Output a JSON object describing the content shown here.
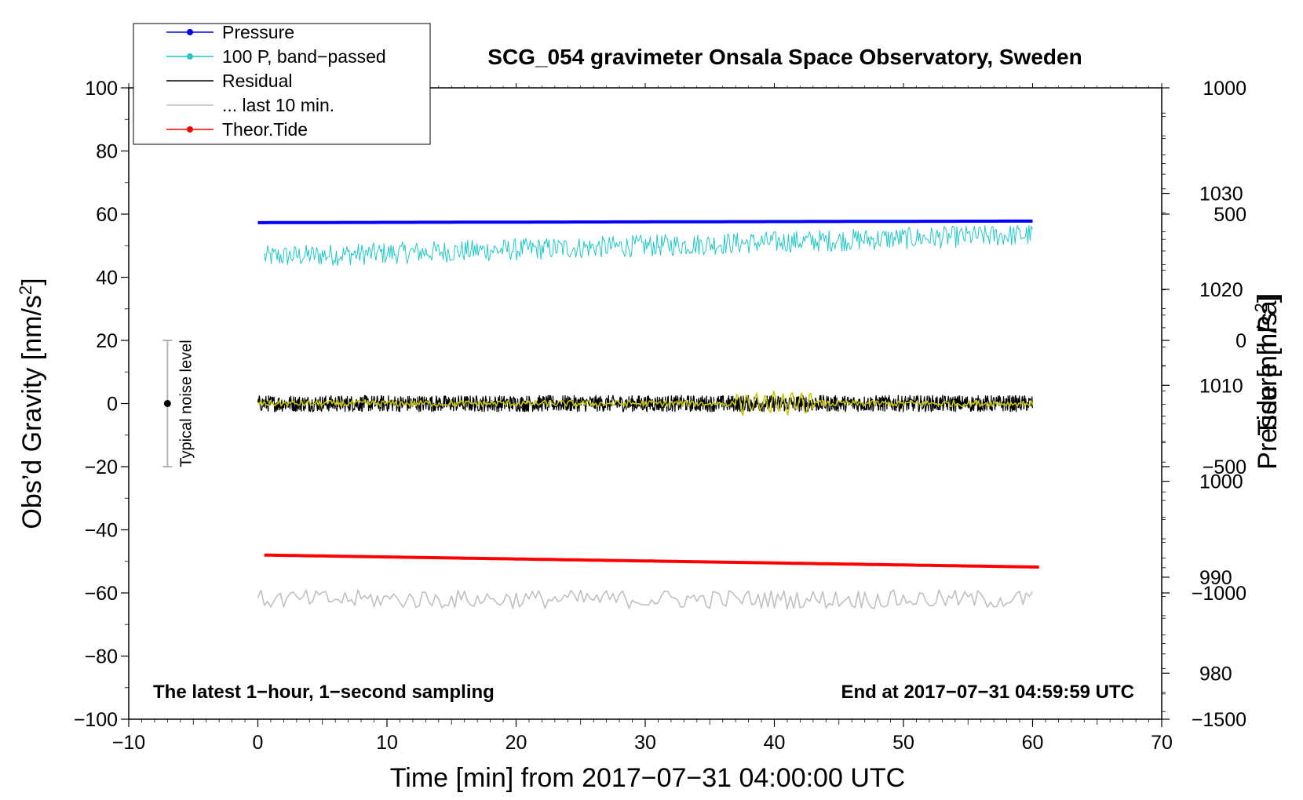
{
  "chart_data": {
    "type": "line",
    "title": "SCG_054 gravimeter Onsala Space Observatory, Sweden",
    "xlabel": "Time [min] from 2017−07−31 04:00:00 UTC",
    "ylabel_left": "Obs’d Gravity [nm/s",
    "ylabel_left_sup": "2",
    "ylabel_left_end": "]",
    "ylabel_pressure": "Pressure [hPa]",
    "ylabel_tide": "Tide [nm/s",
    "ylabel_tide_sup": "2",
    "ylabel_tide_end": "]",
    "xlim": [
      -10,
      70
    ],
    "ylim": [
      -100,
      100
    ],
    "pressure_lim": [
      975.2,
      1041
    ],
    "tide_lim": [
      -1500,
      1000
    ],
    "x_ticks": [
      -10,
      0,
      10,
      20,
      30,
      40,
      50,
      60,
      70
    ],
    "x_tick_labels": [
      "−10",
      "0",
      "10",
      "20",
      "30",
      "40",
      "50",
      "60",
      "70"
    ],
    "y_ticks": [
      -100,
      -80,
      -60,
      -40,
      -20,
      0,
      20,
      40,
      60,
      80,
      100
    ],
    "y_tick_labels": [
      "−100",
      "−80",
      "−60",
      "−40",
      "−20",
      "0",
      "20",
      "40",
      "60",
      "80",
      "100"
    ],
    "pressure_ticks": [
      980,
      990,
      1000,
      1010,
      1020,
      1030
    ],
    "pressure_tick_labels": [
      "980",
      "990",
      "1000",
      "1010",
      "1020",
      "1030"
    ],
    "tide_ticks": [
      -1500,
      -1000,
      -500,
      0,
      500,
      1000
    ],
    "tide_tick_labels": [
      "−1500",
      "−1000",
      "−500",
      "0",
      "500",
      "1000"
    ],
    "legend_position": "top-left",
    "legend": [
      {
        "label": "Pressure",
        "color": "#0000ff",
        "marker": true
      },
      {
        "label": "100 P, band−passed",
        "color": "#20c8c8",
        "marker": true
      },
      {
        "label": "Residual",
        "color": "#000000",
        "marker": false
      },
      {
        "label": "... last 10 min.",
        "color": "#c0c0c0",
        "marker": false
      },
      {
        "label": "Theor.Tide",
        "color": "#ff0000",
        "marker": true
      }
    ],
    "series": [
      {
        "name": "Pressure",
        "color": "#0000ff",
        "axis": "left",
        "x_range": [
          0,
          60
        ],
        "start": 57.3,
        "end": 57.8,
        "noise": 0
      },
      {
        "name": "100 P, band-passed",
        "color": "#20c8c8",
        "axis": "left",
        "x_range": [
          0.5,
          60
        ],
        "start": 46.5,
        "end": 53.5,
        "noise": 3.5
      },
      {
        "name": "Residual",
        "color": "#000000",
        "axis": "left",
        "x_range": [
          0,
          60
        ],
        "start": 0,
        "end": 0,
        "noise": 2.6
      },
      {
        "name": "Residual smoothed",
        "color": "#c8c800",
        "axis": "left",
        "x_range": [
          0,
          60
        ],
        "start": 0,
        "end": 0,
        "noise": 1.0
      },
      {
        "name": "... last 10 min.",
        "color": "#c0c0c0",
        "axis": "left",
        "x_range": [
          0,
          60
        ],
        "start": -62,
        "end": -62,
        "noise": 3.0
      },
      {
        "name": "Theor.Tide",
        "color": "#ff0000",
        "axis": "left",
        "x_range": [
          0.5,
          60.5
        ],
        "start": -48,
        "end": -51.8,
        "noise": 0
      }
    ],
    "noise_bar": {
      "label": "Typical noise level",
      "x": -7,
      "y": 0,
      "low": -20,
      "high": 20
    },
    "annotations": {
      "bottom_left": "The latest 1−hour, 1−second sampling",
      "bottom_right": "End at 2017−07−31 04:59:59 UTC"
    }
  }
}
